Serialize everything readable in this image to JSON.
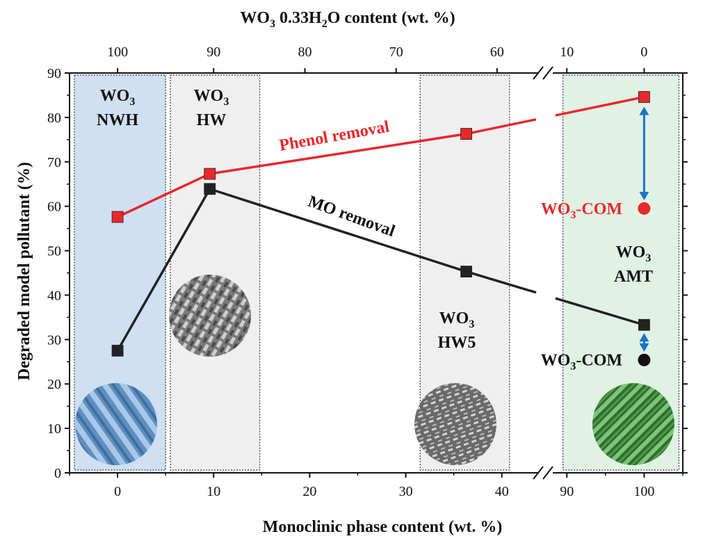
{
  "chart_data": {
    "type": "line",
    "title": "",
    "xlabel": "Monoclinic phase content (wt. %)",
    "ylabel": "Degraded model pollutant (%)",
    "top_xlabel": {
      "prefix": "WO",
      "sub": "3",
      "middle": " 0.33H",
      "sub2": "2",
      "suffix": "O content (wt. %)"
    },
    "ylim": [
      0,
      90
    ],
    "yticks": [
      "0",
      "10",
      "20",
      "30",
      "40",
      "50",
      "60",
      "70",
      "80",
      "90"
    ],
    "x_axis_break": true,
    "x_segments": [
      {
        "range": [
          -5,
          44
        ],
        "ticks": [
          "0",
          "10",
          "20",
          "30",
          "40"
        ]
      },
      {
        "range": [
          88,
          105
        ],
        "ticks": [
          "90",
          "100"
        ]
      }
    ],
    "top_ticks": [
      {
        "x": 0,
        "label": "100"
      },
      {
        "x": 10,
        "label": "90"
      },
      {
        "x": 19.5,
        "label": "80"
      },
      {
        "x": 29,
        "label": "70"
      },
      {
        "x": 39.5,
        "label": "60"
      },
      {
        "x": 90,
        "label": "10"
      },
      {
        "x": 100,
        "label": "0"
      }
    ],
    "series": [
      {
        "name": "Phenol removal",
        "color": "#e8282b",
        "points": [
          {
            "x": 0,
            "y": 57.6
          },
          {
            "x": 9.6,
            "y": 67.3
          },
          {
            "x": 36.3,
            "y": 76.3
          },
          {
            "x": 100,
            "y": 84.6
          }
        ]
      },
      {
        "name": "MO removal",
        "color": "#222222",
        "points": [
          {
            "x": 0,
            "y": 27.5
          },
          {
            "x": 9.6,
            "y": 63.9
          },
          {
            "x": 36.3,
            "y": 45.3
          },
          {
            "x": 100,
            "y": 33.3
          }
        ]
      }
    ],
    "reference_points": [
      {
        "label": "WO3-COM",
        "x": 100,
        "y": 59.5,
        "color": "#e8282b"
      },
      {
        "label": "WO3-COM",
        "x": 100,
        "y": 25.4,
        "color": "#111111"
      }
    ],
    "regions": [
      {
        "label_line1": "WO",
        "sub": "3",
        "label_line2": "NWH",
        "x_range": [
          -4.5,
          5
        ],
        "fill": "#cfe0f2"
      },
      {
        "label_line1": "WO",
        "sub": "3",
        "label_line2": "HW",
        "x_range": [
          5.5,
          14.8
        ],
        "fill": "#efefef"
      },
      {
        "label_line1": "WO",
        "sub": "3",
        "label_line2": "HW5",
        "x_range": [
          31.5,
          40.8
        ],
        "fill": "#efefef"
      },
      {
        "label_line1": "WO",
        "sub": "3",
        "label_line2": "AMT",
        "x_range": [
          89.5,
          104.5
        ],
        "fill": "#dff2e4"
      }
    ],
    "com_label_parts": {
      "main": "WO",
      "sub": "3",
      "rest": "-COM"
    },
    "grid": false,
    "legend": "none"
  }
}
